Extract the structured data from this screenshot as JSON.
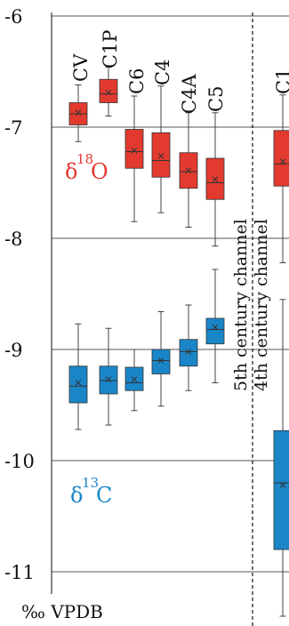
{
  "chart_data": {
    "type": "boxplot",
    "ylabel": "‰ VPDB",
    "ylim": [
      -11.4,
      -5.9
    ],
    "y_ticks": [
      "-6",
      "-7",
      "-8",
      "-9",
      "-10",
      "-11"
    ],
    "gridlines": "horizontal",
    "colors": {
      "d18O": "#e23a2e",
      "d13C": "#1a86c8"
    },
    "divider_label_1": "5th century channel",
    "divider_label_2": "4th century channel",
    "series": [
      {
        "name": "δ18O",
        "label_main": "δ",
        "label_sup": "18",
        "label_elem": "O",
        "color": "#e23a2e",
        "boxes": [
          {
            "label": "CV",
            "whisker_low": -7.13,
            "q1": -6.98,
            "median": -6.88,
            "q3": -6.78,
            "whisker_high": -6.62,
            "mean": -6.87
          },
          {
            "label": "C1P",
            "whisker_low": -6.9,
            "q1": -6.78,
            "median": -6.7,
            "q3": -6.57,
            "whisker_high": -6.46,
            "mean": -6.69
          },
          {
            "label": "C6",
            "whisker_low": -7.85,
            "q1": -7.37,
            "median": -7.22,
            "q3": -7.02,
            "whisker_high": -6.72,
            "mean": -7.21
          },
          {
            "label": "C4",
            "whisker_low": -7.77,
            "q1": -7.45,
            "median": -7.3,
            "q3": -7.05,
            "whisker_high": -6.63,
            "mean": -7.26
          },
          {
            "label": "C4A",
            "whisker_low": -7.9,
            "q1": -7.55,
            "median": -7.4,
            "q3": -7.23,
            "whisker_high": -6.87,
            "mean": -7.39
          },
          {
            "label": "C5",
            "whisker_low": -8.07,
            "q1": -7.65,
            "median": -7.5,
            "q3": -7.28,
            "whisker_high": -6.87,
            "mean": -7.47
          },
          {
            "label": "C1",
            "whisker_low": -8.22,
            "q1": -7.53,
            "median": -7.33,
            "q3": -7.03,
            "whisker_high": -6.71,
            "mean": -7.31
          }
        ]
      },
      {
        "name": "δ13C",
        "label_main": "δ",
        "label_sup": "13",
        "label_elem": "C",
        "color": "#1a86c8",
        "boxes": [
          {
            "label": "CV",
            "whisker_low": -9.72,
            "q1": -9.48,
            "median": -9.33,
            "q3": -9.15,
            "whisker_high": -8.77,
            "mean": -9.3
          },
          {
            "label": "C1P",
            "whisker_low": -9.68,
            "q1": -9.4,
            "median": -9.28,
            "q3": -9.15,
            "whisker_high": -8.81,
            "mean": -9.27
          },
          {
            "label": "C6",
            "whisker_low": -9.55,
            "q1": -9.37,
            "median": -9.3,
            "q3": -9.16,
            "whisker_high": -9.0,
            "mean": -9.27
          },
          {
            "label": "C4",
            "whisker_low": -9.51,
            "q1": -9.22,
            "median": -9.1,
            "q3": -9.0,
            "whisker_high": -8.66,
            "mean": -9.1
          },
          {
            "label": "C4A",
            "whisker_low": -9.37,
            "q1": -9.15,
            "median": -9.02,
            "q3": -8.91,
            "whisker_high": -8.6,
            "mean": -9.02
          },
          {
            "label": "C5",
            "whisker_low": -9.3,
            "q1": -8.95,
            "median": -8.82,
            "q3": -8.72,
            "whisker_high": -8.28,
            "mean": -8.8
          },
          {
            "label": "C1",
            "whisker_low": -11.4,
            "q1": -10.8,
            "median": -10.2,
            "q3": -9.73,
            "whisker_high": -8.55,
            "mean": -10.22
          }
        ]
      }
    ]
  }
}
